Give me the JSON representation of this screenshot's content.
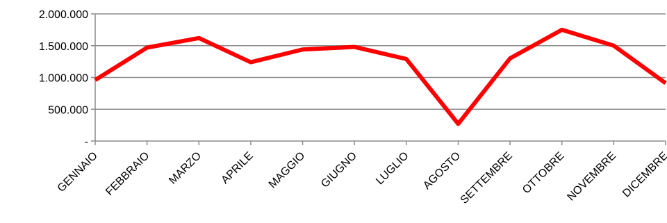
{
  "chart_data": {
    "type": "line",
    "title": "",
    "xlabel": "",
    "ylabel": "",
    "categories": [
      "GENNAIO",
      "FEBBRAIO",
      "MARZO",
      "APRILE",
      "MAGGIO",
      "GIUGNO",
      "LUGLIO",
      "AGOSTO",
      "SETTEMBRE",
      "OTTOBRE",
      "NOVEMBRE",
      "DICEMBRE"
    ],
    "series": [
      {
        "values": [
          960000,
          1470000,
          1620000,
          1240000,
          1440000,
          1480000,
          1290000,
          270000,
          1300000,
          1750000,
          1500000,
          910000
        ],
        "color": "#ff0000"
      }
    ],
    "ylim": [
      0,
      2000000
    ],
    "yticks": [
      0,
      500000,
      1000000,
      1500000,
      2000000
    ],
    "ytick_labels": [
      "-",
      "500.000",
      "1.000.000",
      "1.500.000",
      "2.000.000"
    ],
    "grid": true,
    "legend": "none",
    "colors": {
      "line": "#ff0000",
      "grid": "#8c8c8c",
      "axis": "#8c8c8c",
      "text": "#000000"
    }
  }
}
